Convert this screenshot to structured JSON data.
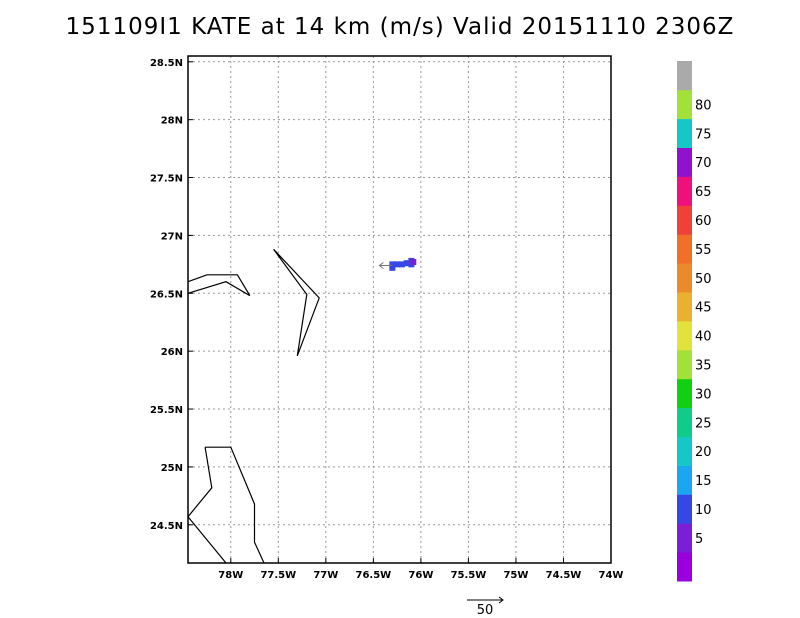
{
  "title": "151109I1 KATE at 14 km (m/s) Valid 20151110 2306Z",
  "map": {
    "lon_range": [
      -78.45,
      -74.0
    ],
    "lat_range": [
      24.17,
      28.55
    ],
    "lon_ticks": [
      {
        "value": -78.0,
        "label": "78W"
      },
      {
        "value": -77.5,
        "label": "77.5W"
      },
      {
        "value": -77.0,
        "label": "77W"
      },
      {
        "value": -76.5,
        "label": "76.5W"
      },
      {
        "value": -76.0,
        "label": "76W"
      },
      {
        "value": -75.5,
        "label": "75.5W"
      },
      {
        "value": -75.0,
        "label": "75W"
      },
      {
        "value": -74.5,
        "label": "74.5W"
      },
      {
        "value": -74.0,
        "label": "74W"
      }
    ],
    "lat_ticks": [
      {
        "value": 24.5,
        "label": "24.5N"
      },
      {
        "value": 25.0,
        "label": "25N"
      },
      {
        "value": 25.5,
        "label": "25.5N"
      },
      {
        "value": 26.0,
        "label": "26N"
      },
      {
        "value": 26.5,
        "label": "26.5N"
      },
      {
        "value": 27.0,
        "label": "27N"
      },
      {
        "value": 27.5,
        "label": "27.5N"
      },
      {
        "value": 28.0,
        "label": "28N"
      },
      {
        "value": 28.5,
        "label": "28.5N"
      }
    ],
    "grid": true,
    "coastlines": [
      [
        [
          -78.45,
          26.6
        ],
        [
          -78.25,
          26.66
        ],
        [
          -77.93,
          26.66
        ],
        [
          -77.8,
          26.48
        ],
        [
          -78.05,
          26.6
        ],
        [
          -78.45,
          26.5
        ]
      ],
      [
        [
          -77.55,
          26.88
        ],
        [
          -77.07,
          26.46
        ],
        [
          -77.3,
          25.96
        ],
        [
          -77.2,
          26.49
        ],
        [
          -77.55,
          26.88
        ]
      ],
      [
        [
          -78.27,
          25.17
        ],
        [
          -78.0,
          25.17
        ],
        [
          -77.75,
          24.68
        ],
        [
          -77.75,
          24.35
        ],
        [
          -77.65,
          24.17
        ]
      ],
      [
        [
          -78.27,
          25.17
        ],
        [
          -78.2,
          24.82
        ],
        [
          -78.45,
          24.57
        ],
        [
          -78.05,
          24.17
        ]
      ]
    ],
    "wind_cells": [
      {
        "lon": -76.3,
        "lat": 26.72,
        "speed": 12
      },
      {
        "lon": -76.3,
        "lat": 26.75,
        "speed": 12
      },
      {
        "lon": -76.25,
        "lat": 26.75,
        "speed": 12
      },
      {
        "lon": -76.2,
        "lat": 26.75,
        "speed": 12
      },
      {
        "lon": -76.15,
        "lat": 26.76,
        "speed": 12
      },
      {
        "lon": -76.1,
        "lat": 26.78,
        "speed": 12
      },
      {
        "lon": -76.1,
        "lat": 26.75,
        "speed": 12
      },
      {
        "lon": -76.08,
        "lat": 26.77,
        "speed": 8
      }
    ],
    "wind_vectors": [
      {
        "lon": -76.3,
        "lat": 26.74,
        "u": -18,
        "v": 0
      }
    ],
    "reference_vector": {
      "label": "50",
      "speed": 50
    }
  },
  "colorbar": {
    "levels": [
      {
        "label": "",
        "color": "#9900dd"
      },
      {
        "label": "5",
        "color": "#7a1fd6"
      },
      {
        "label": "10",
        "color": "#3548e6"
      },
      {
        "label": "15",
        "color": "#1ba6f2"
      },
      {
        "label": "20",
        "color": "#14c8c8"
      },
      {
        "label": "25",
        "color": "#10cc8a"
      },
      {
        "label": "30",
        "color": "#10d012"
      },
      {
        "label": "35",
        "color": "#a2e03a"
      },
      {
        "label": "40",
        "color": "#e3e23a"
      },
      {
        "label": "45",
        "color": "#eab12e"
      },
      {
        "label": "50",
        "color": "#ea8a2a"
      },
      {
        "label": "55",
        "color": "#f07028"
      },
      {
        "label": "60",
        "color": "#f0403a"
      },
      {
        "label": "65",
        "color": "#f0107c"
      },
      {
        "label": "70",
        "color": "#9012cc"
      },
      {
        "label": "75",
        "color": "#14c8c8"
      },
      {
        "label": "80",
        "color": "#a2e03a"
      },
      {
        "label": "",
        "color": "#aaaaaa"
      }
    ]
  }
}
